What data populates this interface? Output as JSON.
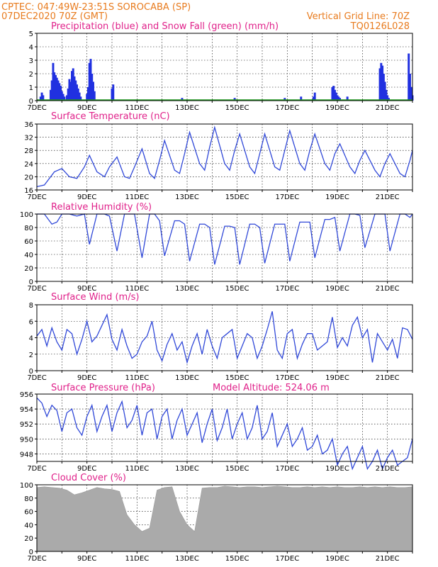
{
  "header": {
    "left_line1": "CPTEC:    047:49W-23:51S   SOROCABA (SP)",
    "left_line2": "07DEC2020 70Z (GMT)",
    "right_line1": "Vertical Grid Line: 70Z",
    "right_line2": "TQ0126L028"
  },
  "panels": {
    "precip_title": "Precipitation (blue) and Snow Fall (green) (mm/h)",
    "temp_title": "Surface Temperature (nC)",
    "rh_title": "Relative Humidity (%)",
    "wind_title": "Surface Wind (m/s)",
    "pres_title": "Surface Pressure (hPa)",
    "pres_extra": "Model Altitude: 524.06 m",
    "cloud_title": "Cloud Cover (%)"
  },
  "colors": {
    "header": "#e87b1e",
    "title": "#e0218a",
    "line": "#3048d8",
    "precip": "#2030e0",
    "snow": "#20a020",
    "cloud": "#aaaaaa"
  },
  "x_ticks": [
    "7DEC",
    "9DEC",
    "11DEC",
    "13DEC",
    "15DEC",
    "17DEC",
    "19DEC",
    "21DEC"
  ],
  "chart_data": [
    {
      "type": "bar",
      "title": "Precipitation (blue) and Snow Fall (green) (mm/h)",
      "x_range_days": [
        7,
        22
      ],
      "ylim": [
        0,
        5
      ],
      "yticks": [
        0,
        1,
        2,
        3,
        4,
        5
      ],
      "series": [
        {
          "name": "Precipitation",
          "x": [
            7.15,
            7.2,
            7.25,
            7.55,
            7.6,
            7.65,
            7.7,
            7.75,
            7.8,
            7.85,
            7.9,
            7.95,
            8.0,
            8.05,
            8.1,
            8.2,
            8.25,
            8.3,
            8.35,
            8.4,
            8.45,
            8.5,
            8.55,
            8.6,
            8.65,
            8.7,
            8.75,
            9.0,
            9.05,
            9.1,
            9.15,
            9.2,
            9.25,
            9.3,
            10.0,
            10.05,
            12.8,
            14.9,
            16.9,
            17.55,
            18.05,
            18.1,
            18.8,
            18.85,
            18.9,
            18.95,
            19.0,
            19.05,
            19.1,
            19.4,
            20.7,
            20.75,
            20.8,
            20.85,
            20.9,
            20.95,
            21.0,
            21.05,
            21.85,
            21.9,
            21.95,
            22.0
          ],
          "values": [
            0.3,
            0.6,
            0.4,
            0.8,
            1.5,
            2.8,
            2.1,
            1.9,
            1.7,
            1.5,
            1.3,
            1.1,
            0.7,
            0.5,
            0.3,
            0.4,
            0.9,
            1.6,
            1.4,
            2.2,
            2.4,
            1.8,
            1.5,
            1.2,
            0.9,
            0.6,
            0.3,
            0.5,
            1.0,
            2.8,
            3.1,
            2.0,
            1.4,
            0.7,
            0.9,
            1.2,
            0.2,
            0.2,
            0.2,
            0.3,
            0.3,
            0.6,
            1.0,
            1.1,
            0.8,
            0.6,
            0.4,
            0.3,
            0.2,
            0.3,
            2.4,
            2.8,
            2.6,
            2.0,
            1.4,
            0.8,
            0.4,
            0.2,
            3.5,
            2.0,
            1.0,
            0.4
          ]
        }
      ]
    },
    {
      "type": "line",
      "title": "Surface Temperature (nC)",
      "x_range_days": [
        7,
        22
      ],
      "ylim": [
        16,
        36
      ],
      "yticks": [
        16,
        20,
        24,
        28,
        32,
        36
      ],
      "series": [
        {
          "name": "Temperature",
          "x": [
            7.0,
            7.3,
            7.7,
            8.0,
            8.3,
            8.6,
            8.9,
            9.1,
            9.4,
            9.7,
            9.9,
            10.2,
            10.5,
            10.7,
            10.9,
            11.2,
            11.5,
            11.7,
            11.9,
            12.1,
            12.5,
            12.7,
            12.9,
            13.1,
            13.5,
            13.7,
            13.9,
            14.1,
            14.5,
            14.7,
            14.9,
            15.1,
            15.5,
            15.7,
            15.9,
            16.1,
            16.5,
            16.7,
            16.9,
            17.1,
            17.5,
            17.7,
            17.9,
            18.1,
            18.5,
            18.7,
            18.9,
            19.1,
            19.5,
            19.7,
            19.9,
            20.1,
            20.5,
            20.7,
            20.9,
            21.1,
            21.5,
            21.7,
            21.9,
            22.0
          ],
          "values": [
            17,
            17.5,
            21.5,
            22.5,
            20,
            19.5,
            23,
            26.5,
            21.5,
            20,
            23,
            26,
            20,
            19.5,
            23,
            28.5,
            21,
            19.5,
            25,
            31,
            22,
            21,
            27,
            33.5,
            24,
            22,
            29,
            35,
            24,
            22,
            28,
            33,
            23,
            21,
            27,
            33,
            23,
            22,
            28,
            34,
            24,
            22,
            28,
            33,
            24,
            22,
            27,
            30,
            23,
            21,
            25,
            28,
            22,
            20,
            24,
            27,
            21,
            20,
            25,
            28
          ]
        }
      ]
    },
    {
      "type": "line",
      "title": "Relative Humidity (%)",
      "x_range_days": [
        7,
        22
      ],
      "ylim": [
        0,
        100
      ],
      "yticks": [
        0,
        20,
        40,
        60,
        80,
        100
      ],
      "series": [
        {
          "name": "Relative Humidity",
          "x": [
            7.0,
            7.3,
            7.6,
            7.8,
            8.0,
            8.3,
            8.6,
            8.9,
            9.1,
            9.4,
            9.7,
            9.9,
            10.2,
            10.5,
            10.7,
            10.9,
            11.2,
            11.5,
            11.7,
            11.9,
            12.1,
            12.5,
            12.7,
            12.9,
            13.1,
            13.5,
            13.7,
            13.9,
            14.1,
            14.5,
            14.7,
            14.9,
            15.1,
            15.5,
            15.7,
            15.9,
            16.1,
            16.5,
            16.7,
            16.9,
            17.1,
            17.5,
            17.7,
            17.9,
            18.1,
            18.5,
            18.7,
            18.9,
            19.1,
            19.5,
            19.7,
            19.9,
            20.1,
            20.5,
            20.7,
            20.9,
            21.1,
            21.5,
            21.7,
            21.9,
            22.0
          ],
          "values": [
            100,
            100,
            85,
            88,
            100,
            100,
            97,
            100,
            55,
            100,
            100,
            97,
            45,
            100,
            100,
            100,
            35,
            100,
            100,
            90,
            38,
            90,
            90,
            85,
            30,
            85,
            85,
            80,
            25,
            82,
            82,
            80,
            25,
            85,
            85,
            80,
            27,
            85,
            85,
            85,
            30,
            88,
            88,
            88,
            35,
            92,
            92,
            95,
            45,
            100,
            100,
            98,
            50,
            100,
            100,
            100,
            45,
            100,
            100,
            95,
            100
          ]
        }
      ]
    },
    {
      "type": "line",
      "title": "Surface Wind (m/s)",
      "x_range_days": [
        7,
        22
      ],
      "ylim": [
        0,
        8
      ],
      "yticks": [
        0,
        2,
        4,
        6,
        8
      ],
      "series": [
        {
          "name": "Wind speed",
          "x": [
            7.0,
            7.2,
            7.4,
            7.6,
            7.8,
            8.0,
            8.2,
            8.4,
            8.6,
            8.8,
            9.0,
            9.2,
            9.4,
            9.6,
            9.8,
            10.0,
            10.2,
            10.4,
            10.6,
            10.8,
            11.0,
            11.2,
            11.4,
            11.6,
            11.8,
            12.0,
            12.2,
            12.4,
            12.6,
            12.8,
            13.0,
            13.2,
            13.4,
            13.6,
            13.8,
            14.0,
            14.2,
            14.4,
            14.6,
            14.8,
            15.0,
            15.2,
            15.4,
            15.6,
            15.8,
            16.0,
            16.2,
            16.4,
            16.6,
            16.8,
            17.0,
            17.2,
            17.4,
            17.6,
            17.8,
            18.0,
            18.2,
            18.4,
            18.6,
            18.8,
            19.0,
            19.2,
            19.4,
            19.6,
            19.8,
            20.0,
            20.2,
            20.4,
            20.6,
            20.8,
            21.0,
            21.2,
            21.4,
            21.6,
            21.8,
            22.0
          ],
          "values": [
            4.2,
            5.0,
            3.0,
            5.2,
            3.5,
            2.5,
            5.0,
            4.5,
            2.0,
            3.8,
            6.0,
            3.5,
            4.2,
            5.5,
            6.8,
            3.8,
            2.5,
            5.0,
            3.0,
            1.5,
            2.0,
            3.5,
            4.2,
            6.0,
            2.5,
            1.2,
            3.2,
            4.5,
            2.5,
            3.5,
            1.0,
            3.0,
            4.5,
            2.0,
            5.0,
            3.0,
            1.5,
            4.0,
            4.5,
            5.0,
            1.5,
            3.0,
            4.5,
            4.0,
            1.5,
            3.0,
            5.0,
            7.2,
            2.5,
            1.5,
            4.5,
            5.0,
            1.5,
            3.2,
            4.5,
            4.5,
            2.5,
            3.0,
            3.5,
            6.5,
            2.8,
            4.0,
            3.0,
            5.5,
            6.5,
            4.0,
            5.0,
            1.0,
            4.5,
            3.5,
            2.5,
            3.8,
            1.5,
            5.2,
            5.0,
            3.8
          ]
        }
      ]
    },
    {
      "type": "line",
      "title": "Surface Pressure (hPa)",
      "x_range_days": [
        7,
        22
      ],
      "ylim": [
        947,
        956
      ],
      "yticks": [
        948,
        950,
        952,
        954,
        956
      ],
      "series": [
        {
          "name": "Pressure",
          "x": [
            7.0,
            7.2,
            7.4,
            7.6,
            7.8,
            8.0,
            8.2,
            8.4,
            8.6,
            8.8,
            9.0,
            9.2,
            9.4,
            9.6,
            9.8,
            10.0,
            10.2,
            10.4,
            10.6,
            10.8,
            11.0,
            11.2,
            11.4,
            11.6,
            11.8,
            12.0,
            12.2,
            12.4,
            12.6,
            12.8,
            13.0,
            13.2,
            13.4,
            13.6,
            13.8,
            14.0,
            14.2,
            14.4,
            14.6,
            14.8,
            15.0,
            15.2,
            15.4,
            15.6,
            15.8,
            16.0,
            16.2,
            16.4,
            16.6,
            16.8,
            17.0,
            17.2,
            17.4,
            17.6,
            17.8,
            18.0,
            18.2,
            18.4,
            18.6,
            18.8,
            19.0,
            19.2,
            19.4,
            19.6,
            19.8,
            20.0,
            20.2,
            20.4,
            20.6,
            20.8,
            21.0,
            21.2,
            21.4,
            21.6,
            21.8,
            22.0
          ],
          "values": [
            955.5,
            954.8,
            953.0,
            954.5,
            953.8,
            951.0,
            953.5,
            954.0,
            951.5,
            950.5,
            953.0,
            954.5,
            951.0,
            953.0,
            954.5,
            951.0,
            953.5,
            955.0,
            951.5,
            952.5,
            954.5,
            950.5,
            953.5,
            954.0,
            950.0,
            953.0,
            954.0,
            950.0,
            952.5,
            954.0,
            950.5,
            952.0,
            953.5,
            949.5,
            952.0,
            954.0,
            949.8,
            951.5,
            954.0,
            950.0,
            952.0,
            953.5,
            950.0,
            951.5,
            954.5,
            950.0,
            951.0,
            953.5,
            949.0,
            950.5,
            952.0,
            949.0,
            950.0,
            951.5,
            948.5,
            949.0,
            950.5,
            948.0,
            948.5,
            950.0,
            946.5,
            948.0,
            949.0,
            946.0,
            947.5,
            949.0,
            946.0,
            947.0,
            948.5,
            946.0,
            947.5,
            948.5,
            946.5,
            947.0,
            947.5,
            950.0
          ]
        }
      ]
    },
    {
      "type": "area",
      "title": "Cloud Cover (%)",
      "x_range_days": [
        7,
        22
      ],
      "ylim": [
        0,
        100
      ],
      "yticks": [
        0,
        20,
        40,
        60,
        80,
        100
      ],
      "series": [
        {
          "name": "Cloud cover",
          "x": [
            7.0,
            7.3,
            7.6,
            7.9,
            8.2,
            8.5,
            8.8,
            9.1,
            9.4,
            9.7,
            10.0,
            10.3,
            10.6,
            10.9,
            11.2,
            11.5,
            11.8,
            12.1,
            12.4,
            12.7,
            13.0,
            13.3,
            13.6,
            13.9,
            14.2,
            14.5,
            14.8,
            15.1,
            15.4,
            15.7,
            16.0,
            16.3,
            16.6,
            16.9,
            17.2,
            17.5,
            17.8,
            18.1,
            18.4,
            18.7,
            19.0,
            19.3,
            19.6,
            19.9,
            20.2,
            20.5,
            20.8,
            21.1,
            21.4,
            21.7,
            22.0
          ],
          "values": [
            96,
            97,
            96,
            95,
            92,
            85,
            88,
            92,
            96,
            94,
            93,
            90,
            55,
            40,
            30,
            35,
            92,
            96,
            97,
            60,
            40,
            30,
            95,
            96,
            96,
            98,
            97,
            96,
            97,
            97,
            96,
            97,
            98,
            97,
            96,
            96,
            97,
            96,
            97,
            96,
            97,
            96,
            96,
            97,
            96,
            97,
            96,
            97,
            96,
            96,
            97
          ]
        }
      ]
    }
  ]
}
